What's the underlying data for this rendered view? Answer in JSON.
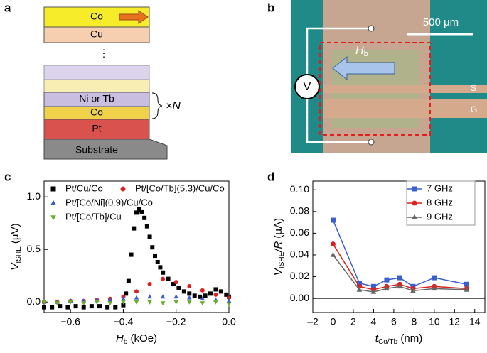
{
  "panels": {
    "a": {
      "label": "a",
      "layers": [
        "Co",
        "Cu",
        "⋮",
        "Ni or Tb",
        "Co",
        "Pt",
        "Substrate"
      ],
      "repeat": "×N"
    },
    "b": {
      "label": "b",
      "scale_bar": "500 μm",
      "field": "H",
      "field_sub": "b",
      "meter": "V",
      "signal": "S",
      "ground": "G"
    }
  },
  "chart_data": [
    {
      "type": "scatter",
      "label": "c",
      "x_label": [
        {
          "text": "H",
          "italic": true
        },
        {
          "text": "b",
          "sub": true
        },
        {
          "text": " (kOe)"
        }
      ],
      "y_label": [
        {
          "text": "V",
          "italic": true
        },
        {
          "text": "ISHE",
          "sub": true
        },
        {
          "text": " (μV)"
        }
      ],
      "xlim": [
        -0.7,
        0.0
      ],
      "ylim": [
        -0.1,
        1.15
      ],
      "xticks": [
        {
          "value": -0.6,
          "label": "−0.6"
        },
        {
          "value": -0.4,
          "label": "−0.4"
        },
        {
          "value": -0.2,
          "label": "−0.2"
        },
        {
          "value": 0,
          "label": "0.0"
        }
      ],
      "yticks": [
        {
          "value": 0,
          "label": "0.0"
        },
        {
          "value": 0.5,
          "label": "0.5"
        },
        {
          "value": 1,
          "label": "1.0"
        }
      ],
      "series": [
        {
          "name": "Pt/Cu/Co",
          "color": "#000000",
          "marker": "square",
          "x": [
            -0.7,
            -0.67,
            -0.64,
            -0.61,
            -0.58,
            -0.55,
            -0.52,
            -0.49,
            -0.46,
            -0.43,
            -0.4,
            -0.39,
            -0.38,
            -0.37,
            -0.36,
            -0.35,
            -0.34,
            -0.33,
            -0.32,
            -0.31,
            -0.3,
            -0.29,
            -0.28,
            -0.27,
            -0.26,
            -0.25,
            -0.23,
            -0.21,
            -0.19,
            -0.17,
            -0.15,
            -0.13,
            -0.11,
            -0.09,
            -0.07,
            -0.05,
            -0.03,
            -0.01,
            0.0
          ],
          "values": [
            -0.05,
            -0.05,
            -0.04,
            -0.05,
            -0.04,
            -0.05,
            -0.04,
            -0.04,
            -0.05,
            -0.05,
            -0.03,
            0.08,
            0.2,
            0.45,
            0.7,
            0.85,
            0.88,
            0.86,
            0.8,
            0.72,
            0.62,
            0.52,
            0.44,
            0.38,
            0.33,
            0.28,
            0.22,
            0.17,
            0.13,
            0.1,
            0.08,
            0.06,
            0.05,
            0.06,
            0.08,
            0.12,
            0.1,
            0.07,
            0.05
          ]
        },
        {
          "name": "Pt/[Co/Tb](5.3)/Cu/Co",
          "color": "#d8231f",
          "marker": "circle",
          "x": [
            -0.7,
            -0.65,
            -0.6,
            -0.55,
            -0.5,
            -0.45,
            -0.4,
            -0.35,
            -0.3,
            -0.25,
            -0.2,
            -0.15,
            -0.1,
            -0.05,
            0.0
          ],
          "values": [
            0.0,
            0.0,
            0.01,
            0.01,
            0.02,
            0.03,
            0.05,
            0.1,
            0.17,
            0.22,
            0.19,
            0.15,
            0.11,
            0.07,
            0.04
          ]
        },
        {
          "name": "Pt/[Co/Ni](0.9)/Cu/Co",
          "color": "#3a5fd0",
          "marker": "triangle",
          "x": [
            -0.7,
            -0.65,
            -0.6,
            -0.55,
            -0.5,
            -0.45,
            -0.4,
            -0.35,
            -0.3,
            -0.25,
            -0.2,
            -0.15,
            -0.1,
            -0.05,
            0.0
          ],
          "values": [
            0.0,
            0.0,
            0.01,
            0.01,
            0.02,
            0.02,
            0.03,
            0.04,
            0.05,
            0.05,
            0.05,
            0.04,
            0.03,
            0.02,
            0.01
          ]
        },
        {
          "name": "Pt/[Co/Tb]/Cu",
          "color": "#6aad2a",
          "marker": "triangle-down",
          "x": [
            -0.7,
            -0.65,
            -0.6,
            -0.55,
            -0.5,
            -0.45,
            -0.4,
            -0.35,
            -0.3,
            -0.25,
            -0.2,
            -0.15,
            -0.1,
            -0.05,
            0.0
          ],
          "values": [
            0.0,
            -0.01,
            0.0,
            -0.01,
            0.0,
            -0.01,
            0.0,
            0.0,
            0.0,
            -0.01,
            0.0,
            0.0,
            -0.01,
            0.0,
            -0.02
          ]
        }
      ]
    },
    {
      "type": "line",
      "label": "d",
      "x_label": [
        {
          "text": "t",
          "italic": true
        },
        {
          "text": "Co/Tb",
          "sub": true
        },
        {
          "text": " (nm)"
        }
      ],
      "y_label": [
        {
          "text": "V",
          "italic": true
        },
        {
          "text": "ISHE",
          "sub": true
        },
        {
          "text": "/R",
          "italic": true
        },
        {
          "text": " (μA)"
        }
      ],
      "xlim": [
        -2,
        15
      ],
      "ylim": [
        -0.013,
        0.108
      ],
      "xticks": [
        {
          "value": -2,
          "label": "–2"
        },
        0,
        2,
        4,
        6,
        8,
        10,
        12,
        14
      ],
      "yticks": [
        {
          "value": 0,
          "label": "0.00"
        },
        {
          "value": 0.02,
          "label": "0.02"
        },
        {
          "value": 0.04,
          "label": "0.04"
        },
        {
          "value": 0.06,
          "label": "0.06"
        },
        {
          "value": 0.08,
          "label": "0.08"
        },
        {
          "value": 0.1,
          "label": "0.10"
        }
      ],
      "series": [
        {
          "name": "7 GHz",
          "color": "#3a5fd0",
          "marker": "square",
          "x": [
            0,
            2.6,
            4.0,
            5.3,
            6.6,
            7.9,
            10,
            13.2
          ],
          "values": [
            0.072,
            0.014,
            0.011,
            0.017,
            0.019,
            0.011,
            0.019,
            0.013
          ]
        },
        {
          "name": "8 GHz",
          "color": "#d8231f",
          "marker": "circle",
          "x": [
            0,
            2.6,
            4.0,
            5.3,
            6.6,
            7.9,
            10,
            13.2
          ],
          "values": [
            0.05,
            0.011,
            0.008,
            0.011,
            0.013,
            0.009,
            0.011,
            0.009
          ]
        },
        {
          "name": "9 GHz",
          "color": "#666666",
          "marker": "triangle",
          "x": [
            0,
            2.6,
            4.0,
            5.3,
            6.6,
            7.9,
            10,
            13.2
          ],
          "values": [
            0.04,
            0.008,
            0.006,
            0.009,
            0.011,
            0.007,
            0.009,
            0.008
          ]
        }
      ]
    }
  ]
}
